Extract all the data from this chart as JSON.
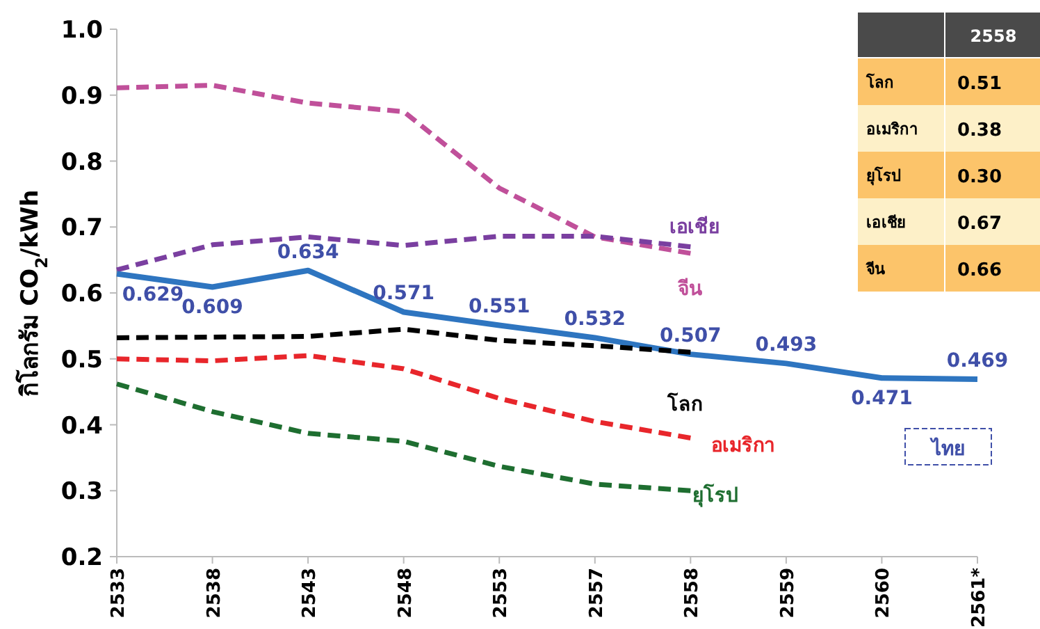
{
  "chart_data": {
    "type": "line",
    "ylabel": "กิโลกรัม CO$_{2}$/kWh",
    "categories": [
      "2533",
      "2538",
      "2543",
      "2548",
      "2553",
      "2557",
      "2558",
      "2559",
      "2560",
      "2561*"
    ],
    "ylim": [
      0.2,
      1.0
    ],
    "yticks": [
      0.2,
      0.3,
      0.4,
      0.5,
      0.6,
      0.7,
      0.8,
      0.9,
      {
        "value": 1.0,
        "label": "1.0"
      }
    ],
    "grid": false,
    "legend": false,
    "marker": "none",
    "series": [
      {
        "name": "จีน",
        "color": "#c0509a",
        "line_style": "dashed",
        "values": [
          0.911,
          0.915,
          0.888,
          0.875,
          0.759,
          0.685,
          0.66,
          null,
          null,
          null
        ]
      },
      {
        "name": "เอเชีย",
        "color": "#7a3fa0",
        "line_style": "dashed",
        "values": [
          0.635,
          0.673,
          0.685,
          0.672,
          0.686,
          0.686,
          0.67,
          null,
          null,
          null
        ]
      },
      {
        "name": "ไทย",
        "color": "#2e75c0",
        "line_style": "solid",
        "values": [
          0.629,
          0.609,
          0.634,
          0.571,
          0.551,
          0.532,
          0.507,
          0.493,
          0.471,
          0.469
        ],
        "value_labels": [
          "0.629",
          "0.609",
          "0.634",
          "0.571",
          "0.551",
          "0.532",
          "0.507",
          "0.493",
          "0.471",
          "0.469"
        ]
      },
      {
        "name": "โลก",
        "color": "#000000",
        "line_style": "dashed",
        "values": [
          0.532,
          0.533,
          0.534,
          0.545,
          0.528,
          0.52,
          0.51,
          null,
          null,
          null
        ]
      },
      {
        "name": "อเมริกา",
        "color": "#e8262b",
        "line_style": "dashed",
        "values": [
          0.5,
          0.497,
          0.505,
          0.485,
          0.44,
          0.405,
          0.38,
          null,
          null,
          null
        ]
      },
      {
        "name": "ยุโรป",
        "color": "#1e6e30",
        "line_style": "dashed",
        "values": [
          0.462,
          0.42,
          0.387,
          0.375,
          0.337,
          0.31,
          0.3,
          null,
          null,
          null
        ]
      }
    ],
    "annotations": [
      "2558",
      "โลก",
      "0.51",
      "อเมริกา",
      "0.38",
      "ยุโรป",
      "0.30",
      "เอเชีย",
      "0.67",
      "จีน",
      "0.66"
    ]
  }
}
